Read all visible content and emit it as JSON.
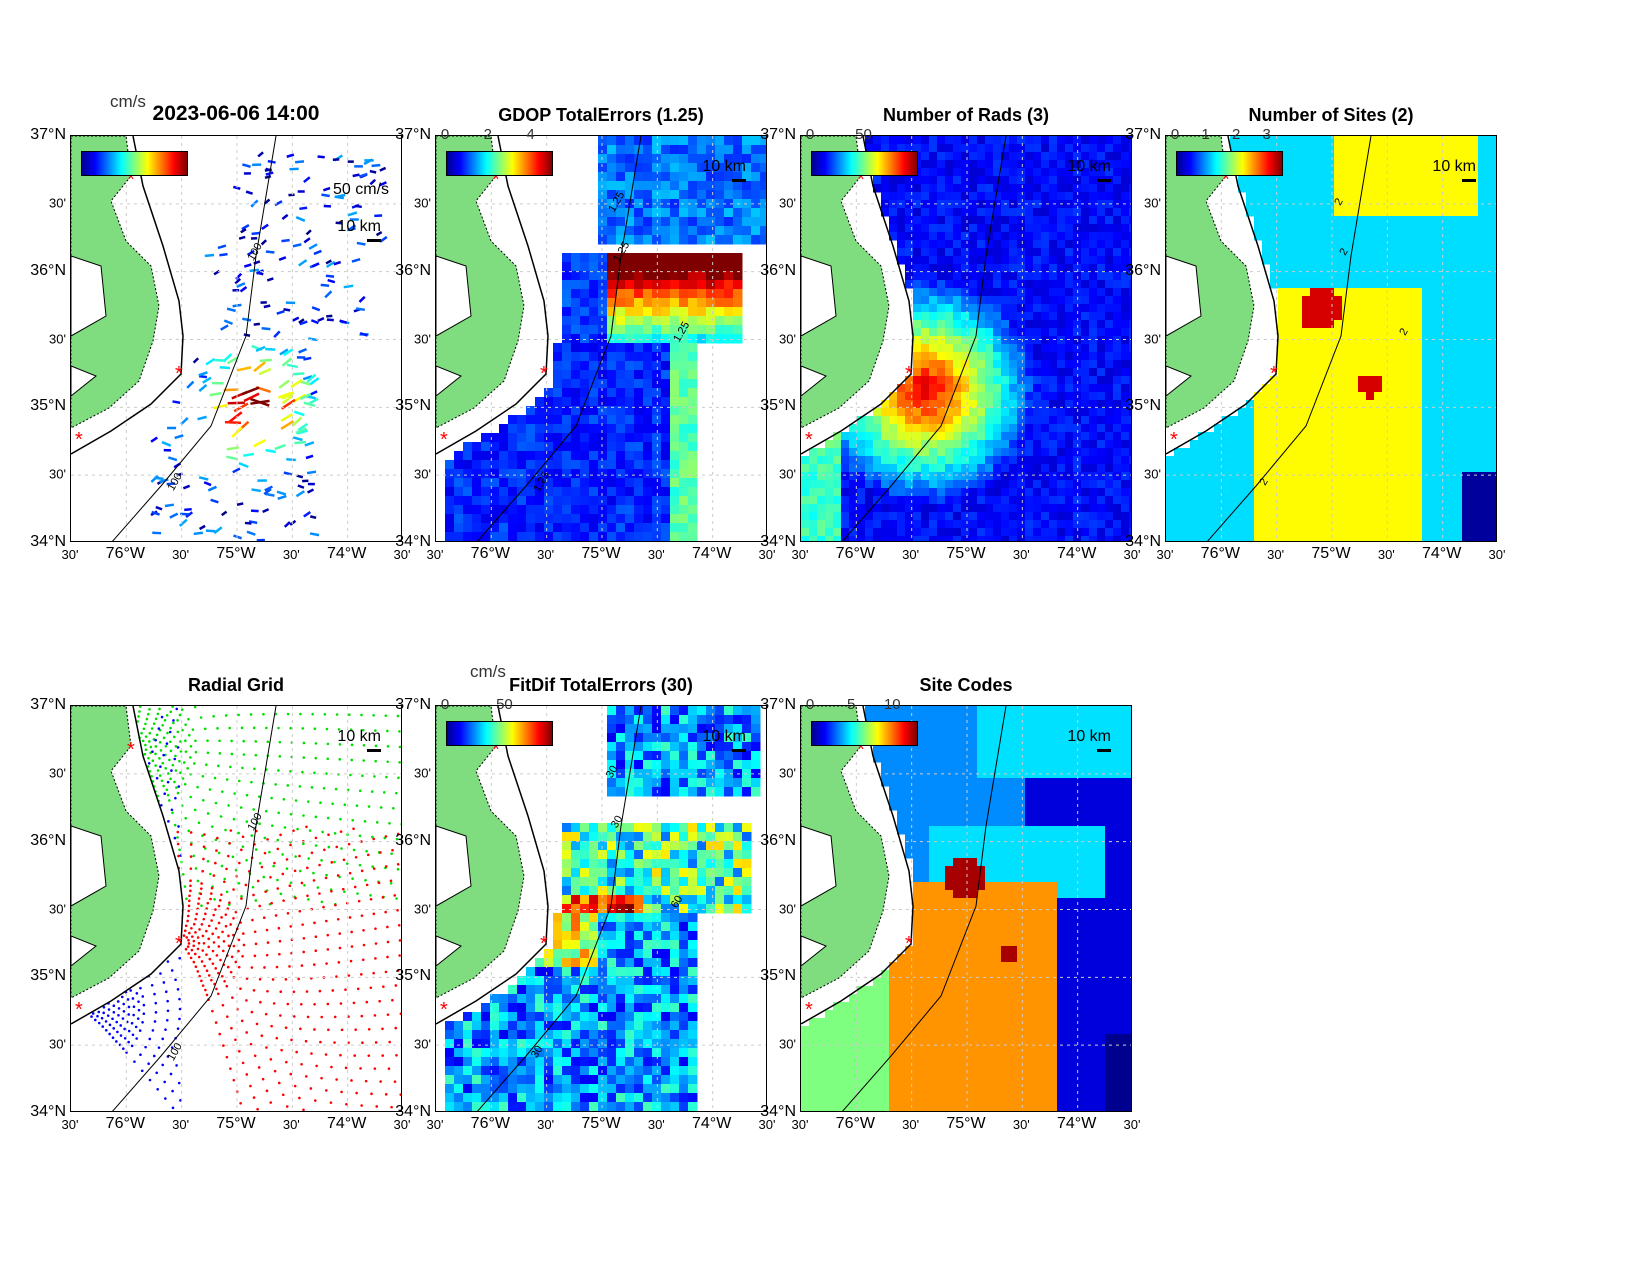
{
  "figure_title": "2023-06-06 14:00",
  "lat_ticks": [
    "37°N",
    "30'",
    "36°N",
    "30'",
    "35°N",
    "30'",
    "34°N"
  ],
  "lon_ticks": [
    "30'",
    "76°W",
    "30'",
    "75°W",
    "30'",
    "74°W",
    "30'"
  ],
  "scale_label": "10 km",
  "colors": {
    "land": "#7fdc7f",
    "site": "#ff0000"
  },
  "chart_data": [
    {
      "id": "p1",
      "type": "quiver",
      "title": "2023-06-06 14:00",
      "unit": "cm/s",
      "cbar_ticks": [],
      "vector_scale": "50 cm/s",
      "contour_labels": [
        "100",
        "100"
      ]
    },
    {
      "id": "p2",
      "type": "heatmap",
      "title": "GDOP TotalErrors (1.25)",
      "cbar_ticks": [
        "0",
        "2",
        "4"
      ],
      "cbar_range": [
        0,
        5
      ],
      "contour_labels": [
        "1.25",
        "1.25",
        "1.25",
        "1.25"
      ]
    },
    {
      "id": "p3",
      "type": "heatmap",
      "title": "Number of Rads (3)",
      "cbar_ticks": [
        "0",
        "50"
      ],
      "cbar_range": [
        0,
        100
      ],
      "contour_labels": []
    },
    {
      "id": "p4",
      "type": "heatmap",
      "title": "Number of Sites (2)",
      "cbar_ticks": [
        "0",
        "1",
        "2",
        "3"
      ],
      "cbar_range": [
        0,
        3.5
      ],
      "contour_labels": [
        "2",
        "2",
        "2",
        "2"
      ]
    },
    {
      "id": "p5",
      "type": "scatter",
      "title": "Radial Grid",
      "cbar_ticks": [],
      "contour_labels": [
        "100",
        "100"
      ]
    },
    {
      "id": "p6",
      "type": "heatmap",
      "title": "FitDif TotalErrors (30)",
      "unit": "cm/s",
      "cbar_ticks": [
        "0",
        "50"
      ],
      "cbar_range": [
        0,
        90
      ],
      "contour_labels": [
        "30",
        "30",
        "60",
        "30"
      ]
    },
    {
      "id": "p7",
      "type": "heatmap",
      "title": "Site Codes",
      "cbar_ticks": [
        "0",
        "5",
        "10"
      ],
      "cbar_range": [
        0,
        13
      ],
      "contour_labels": []
    }
  ]
}
